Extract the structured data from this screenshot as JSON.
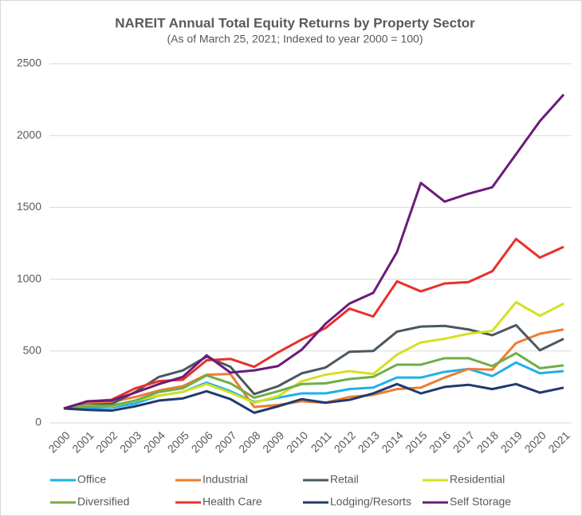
{
  "chart_data": {
    "type": "line",
    "title": "NAREIT Annual Total Equity Returns by Property Sector",
    "subtitle": "(As of March 25, 2021; Indexed to year 2000 = 100)",
    "categories": [
      "2000",
      "2001",
      "2002",
      "2003",
      "2004",
      "2005",
      "2006",
      "2007",
      "2008",
      "2009",
      "2010",
      "2011",
      "2012",
      "2013",
      "2014",
      "2015",
      "2016",
      "2017",
      "2018",
      "2019",
      "2020",
      "2021"
    ],
    "ylim": [
      0,
      2500
    ],
    "yticks": [
      0,
      500,
      1000,
      1500,
      2000,
      2500
    ],
    "grid": true,
    "series": [
      {
        "name": "Office",
        "color": "#1fb0e8",
        "values": [
          100,
          105,
          105,
          135,
          190,
          215,
          280,
          220,
          145,
          175,
          205,
          205,
          235,
          245,
          315,
          315,
          355,
          375,
          325,
          420,
          345,
          360
        ]
      },
      {
        "name": "Industrial",
        "color": "#ed7d31",
        "values": [
          100,
          135,
          145,
          180,
          225,
          255,
          335,
          340,
          110,
          125,
          150,
          140,
          180,
          195,
          235,
          245,
          315,
          375,
          370,
          555,
          620,
          650
        ]
      },
      {
        "name": "Retail",
        "color": "#4a5860",
        "values": [
          100,
          125,
          130,
          215,
          320,
          365,
          460,
          390,
          200,
          255,
          345,
          385,
          495,
          500,
          635,
          670,
          675,
          650,
          610,
          680,
          505,
          585
        ]
      },
      {
        "name": "Residential",
        "color": "#d4e021",
        "values": [
          100,
          120,
          115,
          155,
          190,
          215,
          270,
          210,
          140,
          185,
          290,
          335,
          360,
          340,
          475,
          560,
          585,
          620,
          640,
          840,
          745,
          830
        ]
      },
      {
        "name": "Diversified",
        "color": "#70ad47",
        "values": [
          100,
          115,
          120,
          155,
          215,
          240,
          330,
          275,
          175,
          220,
          270,
          275,
          305,
          320,
          405,
          405,
          450,
          450,
          395,
          485,
          380,
          400
        ]
      },
      {
        "name": "Health Care",
        "color": "#e8302a",
        "values": [
          100,
          150,
          160,
          240,
          290,
          300,
          435,
          445,
          390,
          490,
          580,
          660,
          795,
          740,
          985,
          915,
          970,
          980,
          1055,
          1280,
          1150,
          1225
        ]
      },
      {
        "name": "Lodging/Resorts",
        "color": "#1f3a6e",
        "values": [
          100,
          90,
          85,
          115,
          155,
          170,
          220,
          165,
          70,
          115,
          165,
          140,
          160,
          205,
          270,
          205,
          250,
          265,
          235,
          270,
          210,
          245
        ]
      },
      {
        "name": "Self Storage",
        "color": "#6a1b7a",
        "values": [
          100,
          150,
          155,
          210,
          270,
          320,
          470,
          350,
          365,
          395,
          510,
          690,
          830,
          905,
          1190,
          1670,
          1540,
          1595,
          1640,
          1870,
          2100,
          2285
        ]
      }
    ]
  }
}
